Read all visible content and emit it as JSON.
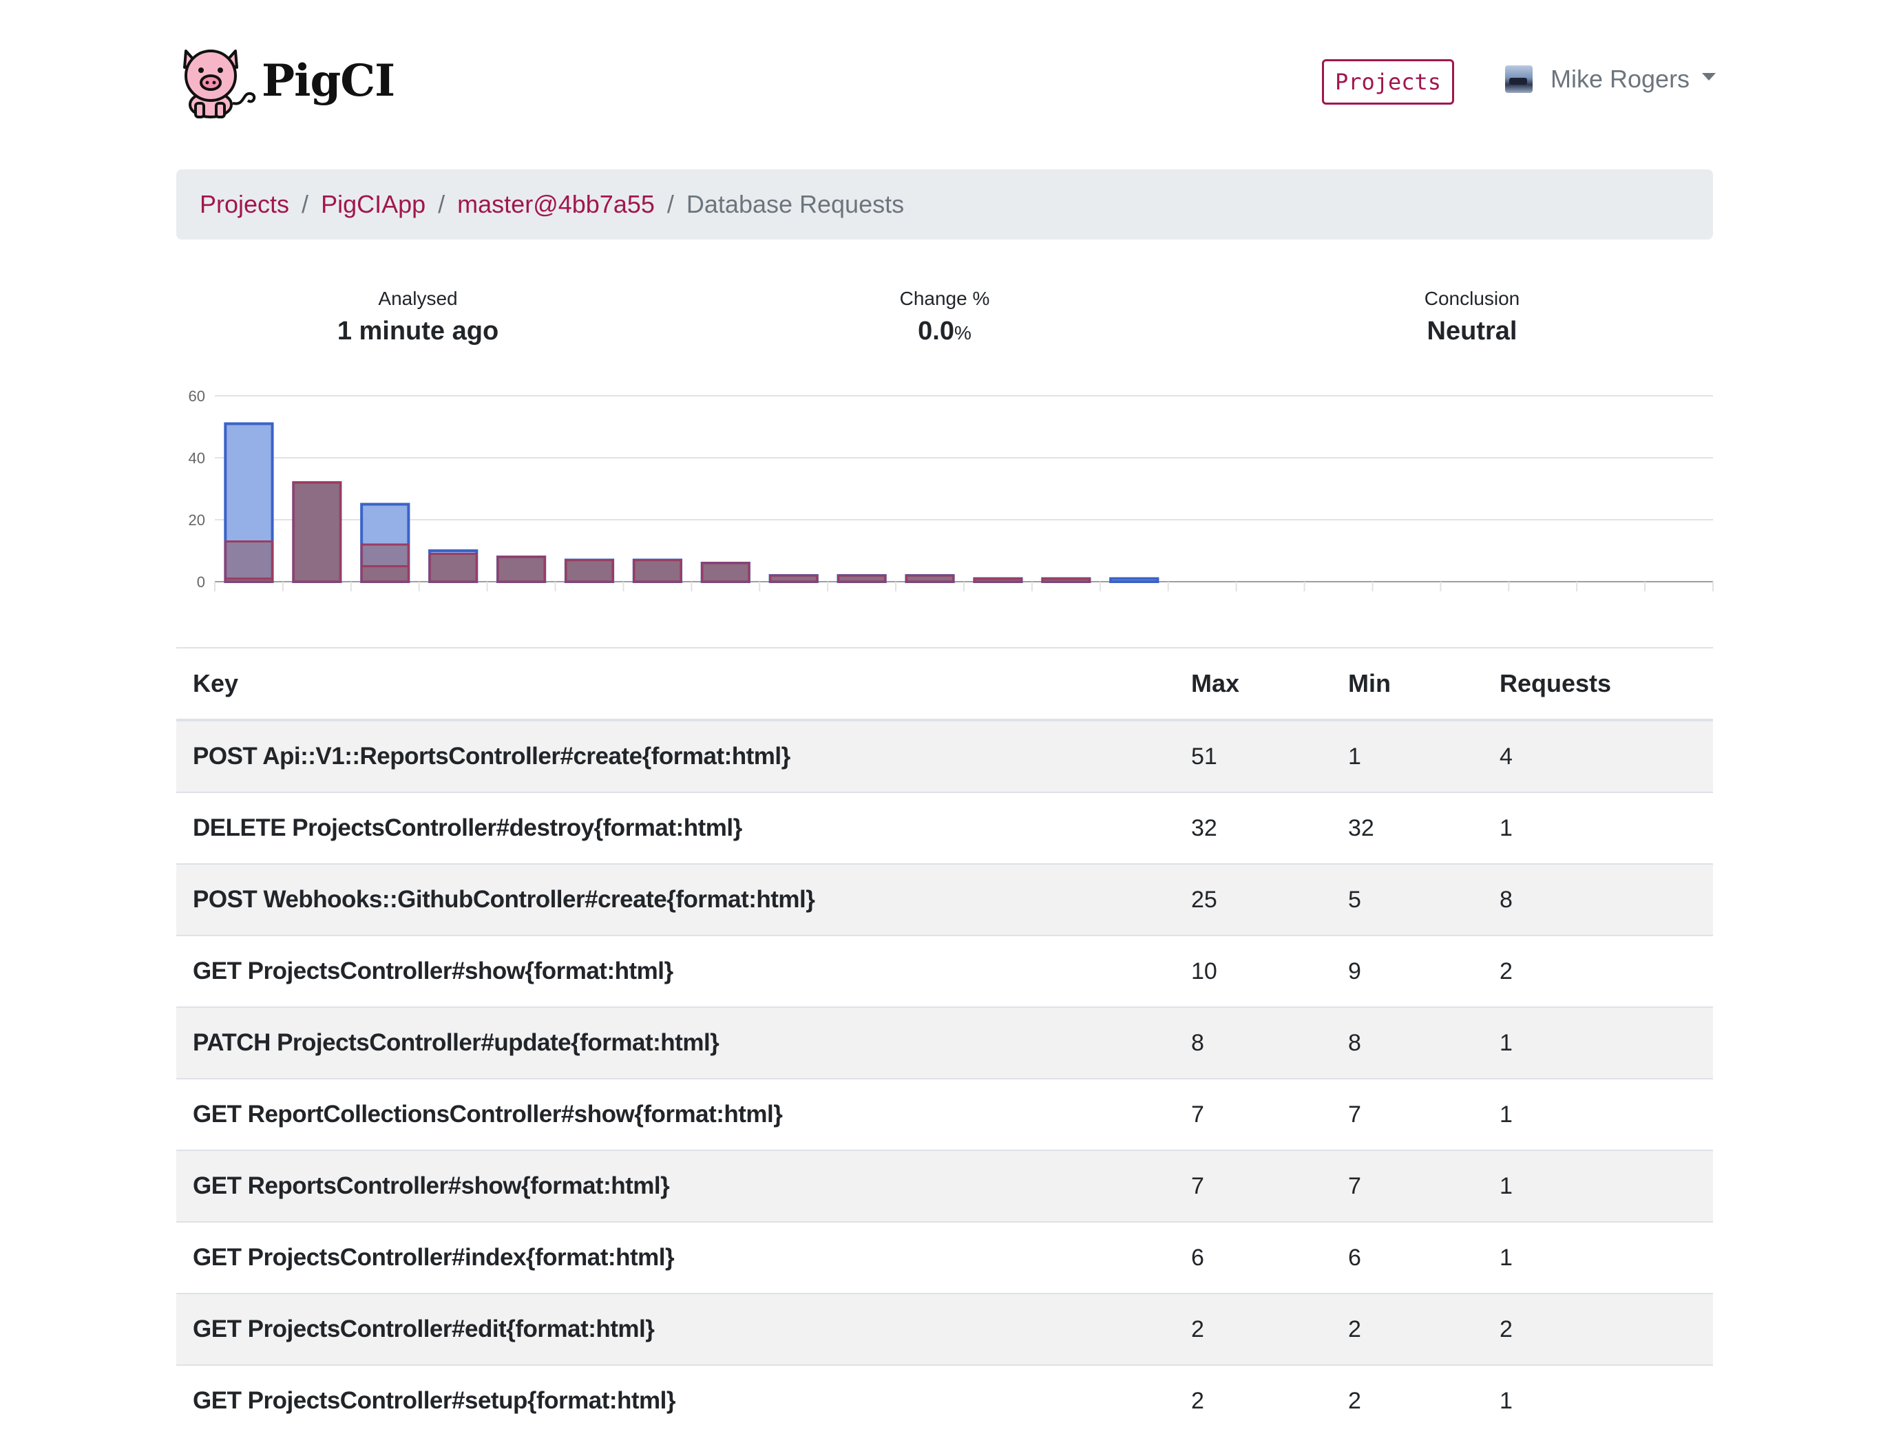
{
  "brand": {
    "name": "PigCI"
  },
  "header": {
    "projects_button": "Projects",
    "user_name": "Mike Rogers"
  },
  "breadcrumb": {
    "items": [
      "Projects",
      "PigCIApp",
      "master@4bb7a55"
    ],
    "active": "Database Requests"
  },
  "stats": {
    "analysed_label": "Analysed",
    "analysed_value": "1 minute ago",
    "change_label": "Change %",
    "change_value": "0.0",
    "change_unit": "%",
    "conclusion_label": "Conclusion",
    "conclusion_value": "Neutral"
  },
  "chart_data": {
    "type": "bar",
    "ylim": [
      0,
      60
    ],
    "yticks": [
      0,
      20,
      40,
      60
    ],
    "grid": true,
    "legend": "none",
    "categories": [
      "POST Api::V1::ReportsController#create{format:html}",
      "DELETE ProjectsController#destroy{format:html}",
      "POST Webhooks::GithubController#create{format:html}",
      "GET ProjectsController#show{format:html}",
      "PATCH ProjectsController#update{format:html}",
      "GET ReportCollectionsController#show{format:html}",
      "GET ReportsController#show{format:html}",
      "GET ProjectsController#index{format:html}",
      "GET ProjectsController#edit{format:html}",
      "GET ProjectsController#setup{format:html}",
      "",
      "",
      "",
      "",
      "",
      "",
      "",
      "",
      "",
      "",
      "",
      ""
    ],
    "series": [
      {
        "color": "#8fabe6",
        "values": [
          51,
          32,
          25,
          10,
          8,
          7,
          7,
          6,
          2,
          2,
          2,
          1,
          1,
          1,
          0,
          0,
          0,
          0,
          0,
          0,
          0,
          0
        ]
      },
      {
        "color": "#8b6172",
        "values": [
          13,
          32,
          12,
          9,
          8,
          7,
          7,
          6,
          2,
          2,
          2,
          1,
          1,
          0,
          0,
          0,
          0,
          0,
          0,
          0,
          0,
          0
        ]
      },
      {
        "color": "#8b6172",
        "values": [
          1,
          32,
          5,
          9,
          8,
          7,
          7,
          6,
          2,
          2,
          2,
          1,
          1,
          0,
          0,
          0,
          0,
          0,
          0,
          0,
          0,
          0
        ]
      }
    ]
  },
  "table": {
    "headers": {
      "key": "Key",
      "max": "Max",
      "min": "Min",
      "requests": "Requests"
    },
    "rows": [
      {
        "key": "POST Api::V1::ReportsController#create{format:html}",
        "max": "51",
        "min": "1",
        "requests": "4"
      },
      {
        "key": "DELETE ProjectsController#destroy{format:html}",
        "max": "32",
        "min": "32",
        "requests": "1"
      },
      {
        "key": "POST Webhooks::GithubController#create{format:html}",
        "max": "25",
        "min": "5",
        "requests": "8"
      },
      {
        "key": "GET ProjectsController#show{format:html}",
        "max": "10",
        "min": "9",
        "requests": "2"
      },
      {
        "key": "PATCH ProjectsController#update{format:html}",
        "max": "8",
        "min": "8",
        "requests": "1"
      },
      {
        "key": "GET ReportCollectionsController#show{format:html}",
        "max": "7",
        "min": "7",
        "requests": "1"
      },
      {
        "key": "GET ReportsController#show{format:html}",
        "max": "7",
        "min": "7",
        "requests": "1"
      },
      {
        "key": "GET ProjectsController#index{format:html}",
        "max": "6",
        "min": "6",
        "requests": "1"
      },
      {
        "key": "GET ProjectsController#edit{format:html}",
        "max": "2",
        "min": "2",
        "requests": "2"
      },
      {
        "key": "GET ProjectsController#setup{format:html}",
        "max": "2",
        "min": "2",
        "requests": "1"
      }
    ]
  }
}
